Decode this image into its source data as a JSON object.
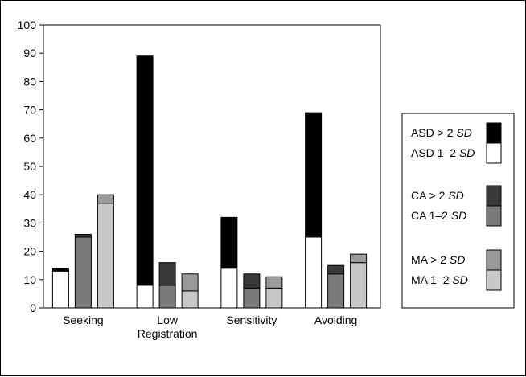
{
  "chart_data": {
    "type": "bar",
    "stacked": true,
    "categories": [
      "Seeking",
      "Low\nRegistration",
      "Sensitivity",
      "Avoiding"
    ],
    "ylim": [
      0,
      100
    ],
    "yticks": [
      0,
      10,
      20,
      30,
      40,
      50,
      60,
      70,
      80,
      90,
      100
    ],
    "grid": false,
    "legend_position": "right",
    "groups": [
      {
        "name": "ASD",
        "series": [
          {
            "name": "ASD 1–2 SD",
            "prefix": "ASD 1–2 ",
            "italic": "SD",
            "color": "#ffffff",
            "values": [
              13,
              8,
              14,
              25
            ]
          },
          {
            "name": "ASD > 2 SD",
            "prefix": "ASD > 2 ",
            "italic": "SD",
            "color": "#000000",
            "values": [
              1,
              81,
              18,
              44
            ]
          }
        ]
      },
      {
        "name": "CA",
        "series": [
          {
            "name": "CA 1–2 SD",
            "prefix": "CA 1–2 ",
            "italic": "SD",
            "color": "#7a7a7a",
            "values": [
              25,
              8,
              7,
              12
            ]
          },
          {
            "name": "CA > 2 SD",
            "prefix": "CA > 2 ",
            "italic": "SD",
            "color": "#3a3a3a",
            "values": [
              1,
              8,
              5,
              3
            ]
          }
        ]
      },
      {
        "name": "MA",
        "series": [
          {
            "name": "MA 1–2 SD",
            "prefix": "MA 1–2 ",
            "italic": "SD",
            "color": "#c8c8c8",
            "values": [
              37,
              6,
              7,
              16
            ]
          },
          {
            "name": "MA > 2 SD",
            "prefix": "MA > 2 ",
            "italic": "SD",
            "color": "#9a9a9a",
            "values": [
              3,
              6,
              4,
              3
            ]
          }
        ]
      }
    ],
    "legend": [
      {
        "prefix": "ASD > 2 ",
        "italic": "SD",
        "color": "#000000"
      },
      {
        "prefix": "ASD 1–2 ",
        "italic": "SD",
        "color": "#ffffff"
      },
      {
        "prefix": "CA > 2 ",
        "italic": "SD",
        "color": "#3a3a3a"
      },
      {
        "prefix": "CA 1–2 ",
        "italic": "SD",
        "color": "#7a7a7a"
      },
      {
        "prefix": "MA > 2 ",
        "italic": "SD",
        "color": "#9a9a9a"
      },
      {
        "prefix": "MA 1–2 ",
        "italic": "SD",
        "color": "#c8c8c8"
      }
    ]
  }
}
